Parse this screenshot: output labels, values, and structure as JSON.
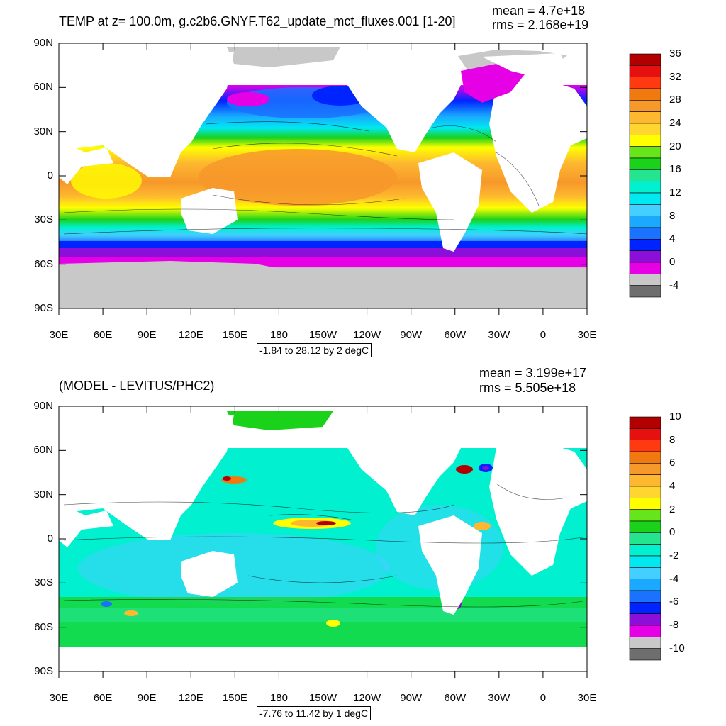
{
  "panels": [
    {
      "title": "TEMP at z= 100.0m, g.c2b6.GNYF.T62_update_mct_fluxes.001 [1-20]",
      "mean_text": "mean = 4.7e+18",
      "rms_text": "rms = 2.168e+19",
      "range_text": "-1.84 to 28.12 by 2 degC",
      "colorbar_labels": [
        "36",
        "32",
        "28",
        "24",
        "20",
        "16",
        "12",
        "8",
        "4",
        "0",
        "-4"
      ],
      "colorbar_colors": [
        "#b20000",
        "#e61010",
        "#ff3a10",
        "#f07a10",
        "#f7982a",
        "#fdb830",
        "#ffd530",
        "#ffff00",
        "#66e61a",
        "#1ad21a",
        "#24e48f",
        "#00f0d0",
        "#00e8f0",
        "#43cfff",
        "#1aa9ff",
        "#1a72ff",
        "#0024ff",
        "#8c0fd9",
        "#e600e6",
        "#c8c8c8",
        "#6e6e6e"
      ]
    },
    {
      "title": "(MODEL - LEVITUS/PHC2)",
      "mean_text": "mean = 3.199e+17",
      "rms_text": "rms = 5.505e+18",
      "range_text": "-7.76 to 11.42 by 1 degC",
      "colorbar_labels": [
        "10",
        "8",
        "6",
        "4",
        "2",
        "0",
        "-2",
        "-4",
        "-6",
        "-8",
        "-10"
      ],
      "colorbar_colors": [
        "#b20000",
        "#e61010",
        "#ff3a10",
        "#f07a10",
        "#f7982a",
        "#fdb830",
        "#ffd530",
        "#ffff00",
        "#66e61a",
        "#1ad21a",
        "#24e48f",
        "#00f0d0",
        "#00e8f0",
        "#43cfff",
        "#1aa9ff",
        "#1a72ff",
        "#0024ff",
        "#8c0fd9",
        "#e600e6",
        "#c8c8c8",
        "#6e6e6e"
      ]
    }
  ],
  "axes": {
    "lat_labels": [
      "90N",
      "60N",
      "30N",
      "0",
      "30S",
      "60S",
      "90S"
    ],
    "lon_labels": [
      "30E",
      "60E",
      "90E",
      "120E",
      "150E",
      "180",
      "150W",
      "120W",
      "90W",
      "60W",
      "30W",
      "0",
      "30E"
    ]
  },
  "colors": {
    "land": "#ffffff",
    "ice": "#c8c8c8",
    "axis": "#000000"
  }
}
